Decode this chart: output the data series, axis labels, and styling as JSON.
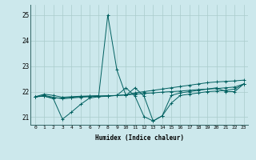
{
  "xlabel": "Humidex (Indice chaleur)",
  "xlim": [
    -0.5,
    23.5
  ],
  "ylim": [
    20.7,
    25.4
  ],
  "yticks": [
    21,
    22,
    23,
    24,
    25
  ],
  "xticks": [
    0,
    1,
    2,
    3,
    4,
    5,
    6,
    7,
    8,
    9,
    10,
    11,
    12,
    13,
    14,
    15,
    16,
    17,
    18,
    19,
    20,
    21,
    22,
    23
  ],
  "bg_color": "#cce8ec",
  "grid_color": "#aacccc",
  "line_color": "#006060",
  "series": [
    [
      21.8,
      21.9,
      21.85,
      21.78,
      21.8,
      21.82,
      21.83,
      21.84,
      25.0,
      22.85,
      21.85,
      22.15,
      21.82,
      20.85,
      21.05,
      21.55,
      21.85,
      21.9,
      21.95,
      22.0,
      22.02,
      22.05,
      22.1,
      22.3
    ],
    [
      21.8,
      21.85,
      21.78,
      21.72,
      21.75,
      21.78,
      21.8,
      21.82,
      21.83,
      21.85,
      21.87,
      21.95,
      22.0,
      22.05,
      22.1,
      22.15,
      22.2,
      22.25,
      22.3,
      22.35,
      22.38,
      22.4,
      22.42,
      22.45
    ],
    [
      21.8,
      21.82,
      21.72,
      20.92,
      21.2,
      21.5,
      21.75,
      21.8,
      21.82,
      21.85,
      22.15,
      21.82,
      21.02,
      20.85,
      21.05,
      21.85,
      21.95,
      22.0,
      22.05,
      22.1,
      22.15,
      22.0,
      22.0,
      22.3
    ],
    [
      21.8,
      21.82,
      21.75,
      21.75,
      21.78,
      21.8,
      21.82,
      21.83,
      21.84,
      21.85,
      21.87,
      21.9,
      21.93,
      21.95,
      21.98,
      22.0,
      22.02,
      22.05,
      22.08,
      22.1,
      22.12,
      22.15,
      22.18,
      22.3
    ]
  ]
}
